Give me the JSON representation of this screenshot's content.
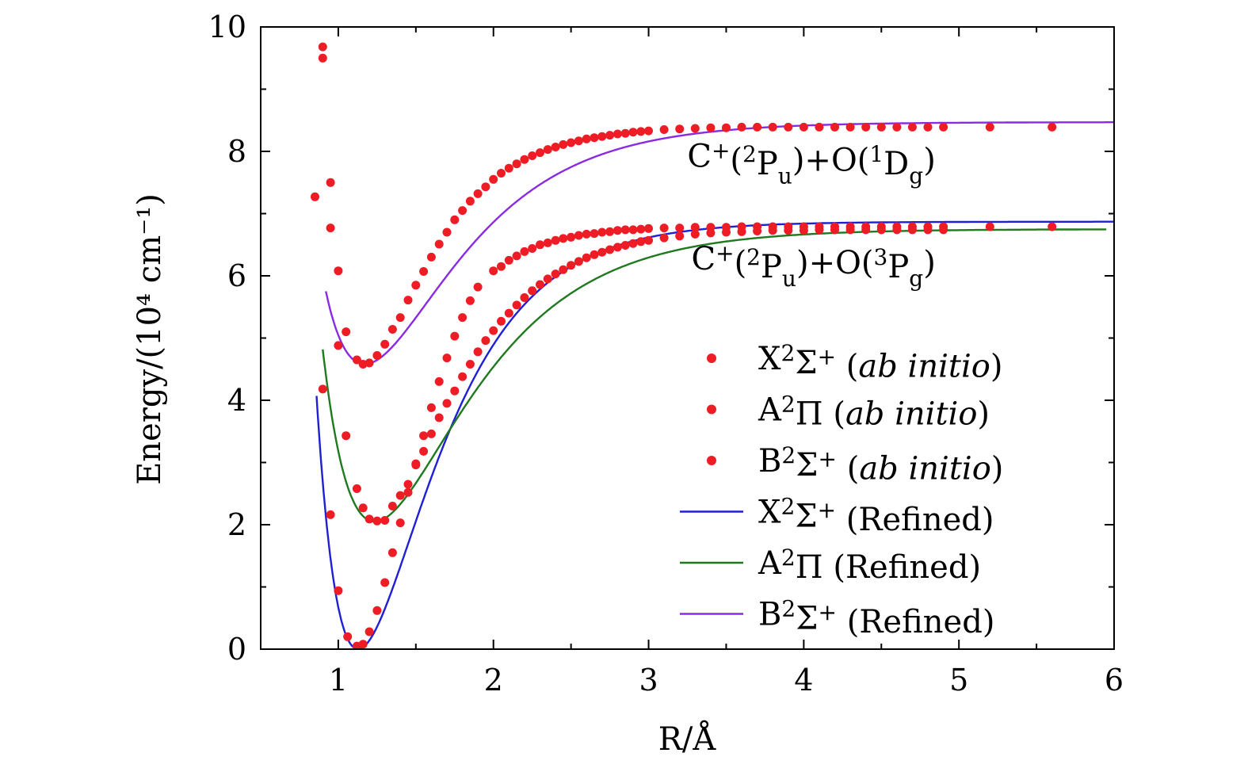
{
  "chart_data": {
    "type": "line",
    "title": "",
    "xlabel": "R/Å",
    "ylabel": "Energy/(10⁴ cm⁻¹)",
    "xlim": [
      0.5,
      6
    ],
    "ylim": [
      0,
      10
    ],
    "x_ticks": [
      1,
      2,
      3,
      4,
      5,
      6
    ],
    "y_ticks": [
      0,
      2,
      4,
      6,
      8,
      10
    ],
    "x_tick_labels": [
      "1",
      "2",
      "3",
      "4",
      "5",
      "6"
    ],
    "y_tick_labels": [
      "0",
      "2",
      "4",
      "6",
      "8",
      "10"
    ],
    "grid": false,
    "legend_position": "bottom-right",
    "annotations": [
      {
        "text": "C⁺(²Pᵤ)+O(¹D_g)",
        "x": 4.85,
        "y": 7.75
      },
      {
        "text": "C⁺(²Pᵤ)+O(³P_g)",
        "x": 4.85,
        "y": 6.1
      }
    ],
    "series": [
      {
        "name": "X²Σ⁺ (ab initio)",
        "kind": "scatter",
        "color": "#ee1c25",
        "points": [
          [
            0.9,
            4.18
          ],
          [
            0.95,
            2.16
          ],
          [
            1.0,
            0.94
          ],
          [
            1.06,
            0.2
          ],
          [
            1.12,
            0.05
          ],
          [
            1.16,
            0.08
          ],
          [
            1.2,
            0.28
          ],
          [
            1.25,
            0.62
          ],
          [
            1.3,
            1.07
          ],
          [
            1.35,
            1.55
          ],
          [
            1.4,
            2.03
          ],
          [
            1.45,
            2.52
          ],
          [
            1.5,
            2.98
          ],
          [
            1.55,
            3.43
          ],
          [
            1.6,
            3.88
          ],
          [
            1.65,
            4.3
          ],
          [
            1.7,
            4.68
          ],
          [
            1.75,
            5.03
          ],
          [
            1.8,
            5.33
          ],
          [
            1.85,
            5.6
          ],
          [
            1.9,
            5.82
          ],
          [
            2.0,
            6.08
          ],
          [
            2.05,
            6.15
          ],
          [
            2.1,
            6.25
          ],
          [
            2.15,
            6.32
          ],
          [
            2.2,
            6.39
          ],
          [
            2.25,
            6.44
          ],
          [
            2.3,
            6.5
          ],
          [
            2.35,
            6.53
          ],
          [
            2.4,
            6.57
          ],
          [
            2.45,
            6.6
          ],
          [
            2.5,
            6.62
          ],
          [
            2.55,
            6.65
          ],
          [
            2.6,
            6.67
          ],
          [
            2.65,
            6.68
          ],
          [
            2.7,
            6.7
          ],
          [
            2.75,
            6.71
          ],
          [
            2.8,
            6.73
          ],
          [
            2.85,
            6.74
          ],
          [
            2.9,
            6.74
          ],
          [
            2.95,
            6.75
          ],
          [
            3.0,
            6.76
          ],
          [
            3.1,
            6.77
          ],
          [
            3.2,
            6.77
          ],
          [
            3.3,
            6.78
          ],
          [
            3.4,
            6.78
          ],
          [
            3.5,
            6.78
          ],
          [
            3.6,
            6.79
          ],
          [
            3.7,
            6.79
          ],
          [
            3.8,
            6.79
          ],
          [
            3.9,
            6.79
          ],
          [
            4.0,
            6.79
          ],
          [
            4.1,
            6.79
          ],
          [
            4.2,
            6.79
          ],
          [
            4.3,
            6.79
          ],
          [
            4.4,
            6.79
          ],
          [
            4.5,
            6.79
          ],
          [
            4.6,
            6.79
          ],
          [
            4.7,
            6.79
          ],
          [
            4.8,
            6.79
          ],
          [
            4.9,
            6.79
          ],
          [
            5.2,
            6.79
          ],
          [
            5.6,
            6.79
          ]
        ]
      },
      {
        "name": "A²Π (ab initio)",
        "kind": "scatter",
        "color": "#ee1c25",
        "points": [
          [
            0.85,
            7.27
          ],
          [
            0.95,
            6.77
          ],
          [
            1.0,
            4.88
          ],
          [
            1.05,
            3.43
          ],
          [
            1.12,
            2.58
          ],
          [
            1.16,
            2.27
          ],
          [
            1.2,
            2.09
          ],
          [
            1.25,
            2.06
          ],
          [
            1.3,
            2.07
          ],
          [
            1.35,
            2.3
          ],
          [
            1.4,
            2.47
          ],
          [
            1.45,
            2.65
          ],
          [
            1.5,
            2.96
          ],
          [
            1.55,
            3.18
          ],
          [
            1.6,
            3.46
          ],
          [
            1.65,
            3.72
          ],
          [
            1.7,
            3.95
          ],
          [
            1.75,
            4.15
          ],
          [
            1.8,
            4.38
          ],
          [
            1.85,
            4.58
          ],
          [
            1.9,
            4.78
          ],
          [
            1.95,
            4.96
          ],
          [
            2.0,
            5.12
          ],
          [
            2.05,
            5.27
          ],
          [
            2.1,
            5.4
          ],
          [
            2.15,
            5.53
          ],
          [
            2.2,
            5.65
          ],
          [
            2.25,
            5.76
          ],
          [
            2.3,
            5.86
          ],
          [
            2.35,
            5.95
          ],
          [
            2.4,
            6.03
          ],
          [
            2.45,
            6.1
          ],
          [
            2.5,
            6.17
          ],
          [
            2.55,
            6.23
          ],
          [
            2.6,
            6.29
          ],
          [
            2.65,
            6.34
          ],
          [
            2.7,
            6.38
          ],
          [
            2.75,
            6.42
          ],
          [
            2.8,
            6.46
          ],
          [
            2.85,
            6.49
          ],
          [
            2.9,
            6.52
          ],
          [
            2.95,
            6.55
          ],
          [
            3.0,
            6.57
          ],
          [
            3.1,
            6.61
          ],
          [
            3.2,
            6.64
          ],
          [
            3.3,
            6.67
          ],
          [
            3.4,
            6.69
          ],
          [
            3.5,
            6.7
          ],
          [
            3.6,
            6.71
          ],
          [
            3.7,
            6.72
          ],
          [
            3.8,
            6.73
          ],
          [
            3.9,
            6.73
          ],
          [
            4.0,
            6.73
          ],
          [
            4.1,
            6.74
          ],
          [
            4.2,
            6.74
          ],
          [
            4.3,
            6.74
          ],
          [
            4.4,
            6.74
          ],
          [
            4.5,
            6.74
          ],
          [
            4.6,
            6.74
          ],
          [
            4.7,
            6.74
          ],
          [
            4.8,
            6.74
          ],
          [
            4.9,
            6.74
          ]
        ]
      },
      {
        "name": "B²Σ⁺ (ab initio)",
        "kind": "scatter",
        "color": "#ee1c25",
        "points": [
          [
            0.9,
            9.68
          ],
          [
            0.9,
            9.5
          ],
          [
            0.95,
            7.5
          ],
          [
            1.0,
            6.08
          ],
          [
            1.05,
            5.1
          ],
          [
            1.12,
            4.65
          ],
          [
            1.16,
            4.58
          ],
          [
            1.2,
            4.6
          ],
          [
            1.25,
            4.72
          ],
          [
            1.3,
            4.9
          ],
          [
            1.35,
            5.14
          ],
          [
            1.4,
            5.33
          ],
          [
            1.45,
            5.61
          ],
          [
            1.5,
            5.85
          ],
          [
            1.55,
            6.07
          ],
          [
            1.6,
            6.3
          ],
          [
            1.65,
            6.51
          ],
          [
            1.7,
            6.7
          ],
          [
            1.75,
            6.9
          ],
          [
            1.8,
            7.05
          ],
          [
            1.85,
            7.2
          ],
          [
            1.9,
            7.32
          ],
          [
            1.95,
            7.43
          ],
          [
            2.0,
            7.55
          ],
          [
            2.05,
            7.65
          ],
          [
            2.1,
            7.73
          ],
          [
            2.15,
            7.8
          ],
          [
            2.2,
            7.87
          ],
          [
            2.25,
            7.93
          ],
          [
            2.3,
            7.98
          ],
          [
            2.35,
            8.03
          ],
          [
            2.4,
            8.07
          ],
          [
            2.45,
            8.11
          ],
          [
            2.5,
            8.14
          ],
          [
            2.55,
            8.17
          ],
          [
            2.6,
            8.2
          ],
          [
            2.65,
            8.22
          ],
          [
            2.7,
            8.24
          ],
          [
            2.75,
            8.26
          ],
          [
            2.8,
            8.28
          ],
          [
            2.85,
            8.29
          ],
          [
            2.9,
            8.31
          ],
          [
            2.95,
            8.32
          ],
          [
            3.0,
            8.33
          ],
          [
            3.1,
            8.35
          ],
          [
            3.2,
            8.36
          ],
          [
            3.3,
            8.37
          ],
          [
            3.4,
            8.38
          ],
          [
            3.5,
            8.38
          ],
          [
            3.6,
            8.39
          ],
          [
            3.7,
            8.39
          ],
          [
            3.8,
            8.39
          ],
          [
            3.9,
            8.39
          ],
          [
            4.0,
            8.39
          ],
          [
            4.1,
            8.39
          ],
          [
            4.2,
            8.39
          ],
          [
            4.3,
            8.39
          ],
          [
            4.4,
            8.39
          ],
          [
            4.5,
            8.39
          ],
          [
            4.6,
            8.39
          ],
          [
            4.7,
            8.39
          ],
          [
            4.8,
            8.39
          ],
          [
            4.9,
            8.39
          ],
          [
            5.2,
            8.39
          ],
          [
            5.6,
            8.39
          ]
        ]
      },
      {
        "name": "X²Σ⁺ (Refined)",
        "kind": "line",
        "color": "#1f1fd6",
        "potential": {
          "De": 6.87,
          "a": 2.13,
          "re": 1.128,
          "xmin": 0.86,
          "xmax": 6.0
        }
      },
      {
        "name": "A²Π (Refined)",
        "kind": "line",
        "color": "#1f7a1f",
        "potential": {
          "T0": 2.05,
          "De": 4.7,
          "a": 1.7,
          "re": 1.235,
          "xmin": 0.9,
          "xmax": 5.95
        }
      },
      {
        "name": "B²Σ⁺ (Refined)",
        "kind": "line",
        "color": "#8a2be2",
        "potential": {
          "T0": 4.58,
          "De": 3.89,
          "a": 1.75,
          "re": 1.17,
          "xmin": 0.92,
          "xmax": 6.0
        }
      }
    ]
  }
}
